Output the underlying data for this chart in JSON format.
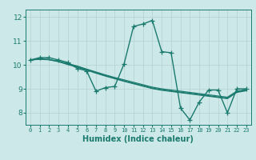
{
  "title": "",
  "xlabel": "Humidex (Indice chaleur)",
  "xlim": [
    -0.5,
    23.5
  ],
  "ylim": [
    7.5,
    12.3
  ],
  "yticks": [
    8,
    9,
    10,
    11,
    12
  ],
  "xticks": [
    0,
    1,
    2,
    3,
    4,
    5,
    6,
    7,
    8,
    9,
    10,
    11,
    12,
    13,
    14,
    15,
    16,
    17,
    18,
    19,
    20,
    21,
    22,
    23
  ],
  "background_color": "#cde8e8",
  "grid_color": "#b8d4d4",
  "line_color": "#1a7a6e",
  "lines": [
    {
      "x": [
        0,
        1,
        2,
        3,
        4,
        5,
        6,
        7,
        8,
        9,
        10,
        11,
        12,
        13,
        14,
        15,
        16,
        17,
        18,
        19,
        20,
        21,
        22,
        23
      ],
      "y": [
        10.2,
        10.3,
        10.3,
        10.2,
        10.1,
        9.85,
        9.75,
        8.9,
        9.05,
        9.1,
        10.05,
        11.6,
        11.7,
        11.85,
        10.55,
        10.5,
        8.2,
        7.7,
        8.45,
        8.95,
        8.95,
        8.0,
        9.0,
        9.0
      ],
      "marker": "+",
      "markersize": 4,
      "linewidth": 1.0
    },
    {
      "x": [
        0,
        1,
        2,
        3,
        4,
        5,
        6,
        7,
        8,
        9,
        10,
        11,
        12,
        13,
        14,
        15,
        16,
        17,
        18,
        19,
        20,
        21,
        22,
        23
      ],
      "y": [
        10.2,
        10.25,
        10.22,
        10.15,
        10.05,
        9.95,
        9.82,
        9.7,
        9.58,
        9.47,
        9.37,
        9.27,
        9.17,
        9.07,
        9.0,
        8.95,
        8.9,
        8.85,
        8.8,
        8.75,
        8.7,
        8.65,
        8.9,
        8.97
      ],
      "marker": null,
      "markersize": 0,
      "linewidth": 0.9
    },
    {
      "x": [
        0,
        1,
        2,
        3,
        4,
        5,
        6,
        7,
        8,
        9,
        10,
        11,
        12,
        13,
        14,
        15,
        16,
        17,
        18,
        19,
        20,
        21,
        22,
        23
      ],
      "y": [
        10.2,
        10.24,
        10.22,
        10.14,
        10.03,
        9.92,
        9.8,
        9.67,
        9.55,
        9.44,
        9.33,
        9.23,
        9.13,
        9.03,
        8.96,
        8.91,
        8.86,
        8.81,
        8.76,
        8.71,
        8.66,
        8.61,
        8.87,
        8.94
      ],
      "marker": null,
      "markersize": 0,
      "linewidth": 0.9
    },
    {
      "x": [
        0,
        1,
        2,
        3,
        4,
        5,
        6,
        7,
        8,
        9,
        10,
        11,
        12,
        13,
        14,
        15,
        16,
        17,
        18,
        19,
        20,
        21,
        22,
        23
      ],
      "y": [
        10.2,
        10.23,
        10.21,
        10.13,
        10.01,
        9.9,
        9.78,
        9.65,
        9.53,
        9.42,
        9.31,
        9.21,
        9.11,
        9.01,
        8.94,
        8.89,
        8.84,
        8.79,
        8.74,
        8.69,
        8.64,
        8.59,
        8.85,
        8.92
      ],
      "marker": null,
      "markersize": 0,
      "linewidth": 0.9
    }
  ]
}
